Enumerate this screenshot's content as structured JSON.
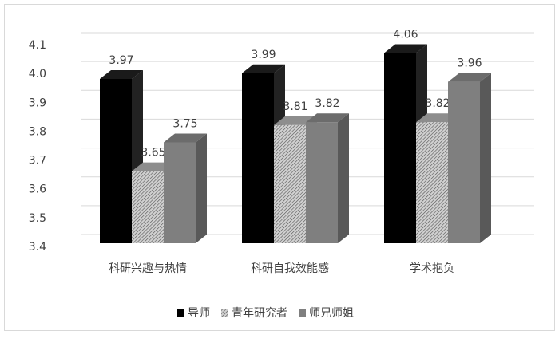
{
  "chart_data": {
    "type": "bar3d",
    "categories": [
      "科研兴趣与热情",
      "科研自我效能感",
      "学术抱负"
    ],
    "series": [
      {
        "name": "导师",
        "color": "#000000",
        "values": [
          3.97,
          3.99,
          4.06
        ]
      },
      {
        "name": "青年研究者",
        "color": "#a6a6a6",
        "hatch": true,
        "values": [
          3.65,
          3.81,
          3.82
        ]
      },
      {
        "name": "师兄师姐",
        "color": "#7f7f7f",
        "values": [
          3.75,
          3.82,
          3.96
        ]
      }
    ],
    "ylim": [
      3.4,
      4.1
    ],
    "yticks": [
      3.4,
      3.5,
      3.6,
      3.7,
      3.8,
      3.9,
      {
        "value": 4,
        "label": "4.0"
      },
      4.1
    ],
    "grid": true,
    "legend": "bottom"
  }
}
